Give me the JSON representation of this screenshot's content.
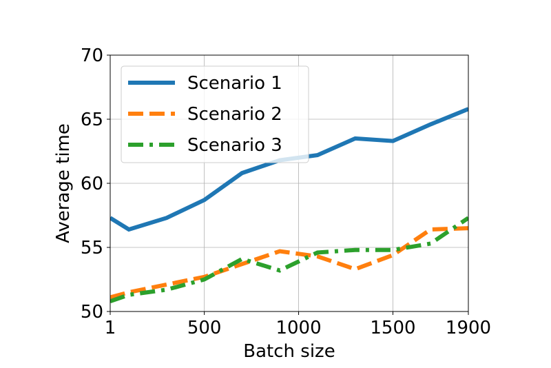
{
  "chart_data": {
    "type": "line",
    "xlabel": "Batch size",
    "ylabel": "Average time",
    "x": [
      1,
      100,
      300,
      500,
      700,
      900,
      1100,
      1300,
      1500,
      1700,
      1900
    ],
    "series": [
      {
        "name": "Scenario 1",
        "color": "#1f77b4",
        "linestyle": "solid",
        "values": [
          57.3,
          56.4,
          57.3,
          58.7,
          60.8,
          61.8,
          62.2,
          63.5,
          63.3,
          64.6,
          65.8
        ]
      },
      {
        "name": "Scenario 2",
        "color": "#ff7f0e",
        "linestyle": "dashed",
        "values": [
          51.1,
          51.5,
          52.1,
          52.7,
          53.7,
          54.7,
          54.3,
          53.3,
          54.4,
          56.4,
          56.5
        ]
      },
      {
        "name": "Scenario 3",
        "color": "#2ca02c",
        "linestyle": "dashdot",
        "values": [
          50.8,
          51.3,
          51.7,
          52.5,
          54.1,
          53.2,
          54.6,
          54.8,
          54.8,
          55.3,
          57.3
        ]
      }
    ],
    "xlim": [
      1,
      1900
    ],
    "xticks": [
      1,
      500,
      1000,
      1500,
      1900
    ],
    "ylim": [
      50,
      70
    ],
    "yticks": [
      50,
      55,
      60,
      65,
      70
    ],
    "grid": true,
    "legend": "upper left"
  }
}
